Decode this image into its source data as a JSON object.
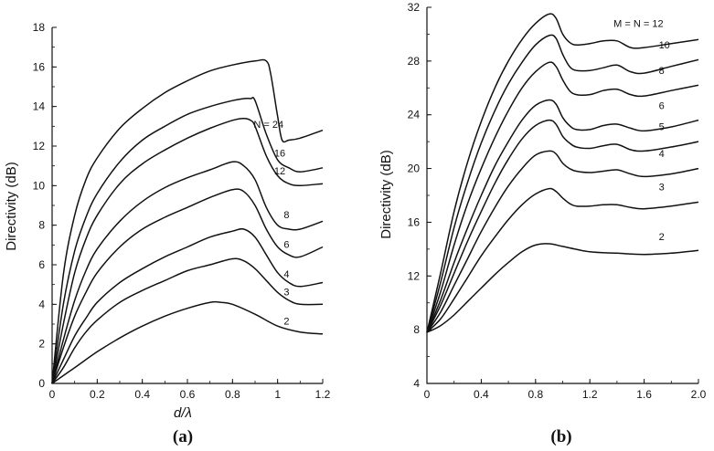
{
  "chart_data": [
    {
      "type": "line",
      "panel_label": "(a)",
      "xlabel": "d/λ",
      "ylabel": "Directivity (dB)",
      "xlim": [
        0,
        1.2
      ],
      "ylim": [
        0,
        18
      ],
      "xticks": [
        "0",
        "0.2",
        "0.4",
        "0.6",
        "0.8",
        "1",
        "1.2"
      ],
      "yticks": [
        "0",
        "2",
        "4",
        "6",
        "8",
        "10",
        "12",
        "14",
        "16",
        "18"
      ],
      "grid": false,
      "series": [
        {
          "name": "N = 24",
          "x": [
            0,
            0.05,
            0.1,
            0.15,
            0.2,
            0.3,
            0.4,
            0.5,
            0.6,
            0.7,
            0.8,
            0.9,
            0.95,
            0.97,
            1.0,
            1.02,
            1.05,
            1.1,
            1.2
          ],
          "y": [
            0,
            5.5,
            8.5,
            10.3,
            11.4,
            12.9,
            13.9,
            14.7,
            15.3,
            15.8,
            16.1,
            16.3,
            16.3,
            15.6,
            13.5,
            12.3,
            12.3,
            12.4,
            12.8
          ]
        },
        {
          "name": "16",
          "x": [
            0,
            0.05,
            0.1,
            0.15,
            0.2,
            0.3,
            0.4,
            0.5,
            0.6,
            0.7,
            0.8,
            0.85,
            0.88,
            0.9,
            0.95,
            1.0,
            1.05,
            1.1,
            1.2
          ],
          "y": [
            0,
            4.0,
            6.7,
            8.4,
            9.6,
            11.2,
            12.3,
            13.0,
            13.6,
            14.0,
            14.3,
            14.4,
            14.4,
            14.3,
            12.6,
            11.3,
            10.9,
            10.7,
            10.9
          ]
        },
        {
          "name": "12",
          "x": [
            0,
            0.05,
            0.1,
            0.15,
            0.2,
            0.3,
            0.4,
            0.5,
            0.6,
            0.7,
            0.8,
            0.85,
            0.88,
            0.9,
            0.95,
            1.0,
            1.05,
            1.1,
            1.2
          ],
          "y": [
            0,
            3.0,
            5.6,
            7.3,
            8.5,
            10.1,
            11.1,
            11.8,
            12.4,
            12.9,
            13.3,
            13.4,
            13.3,
            13.0,
            11.5,
            10.5,
            10.1,
            10.0,
            10.1
          ]
        },
        {
          "name": "8",
          "x": [
            0,
            0.05,
            0.1,
            0.15,
            0.2,
            0.3,
            0.4,
            0.5,
            0.6,
            0.7,
            0.8,
            0.85,
            0.9,
            0.95,
            1.0,
            1.05,
            1.1,
            1.2
          ],
          "y": [
            0,
            2.2,
            4.2,
            5.7,
            6.8,
            8.2,
            9.2,
            9.9,
            10.4,
            10.8,
            11.2,
            11.0,
            10.3,
            8.9,
            8.0,
            7.8,
            7.8,
            8.2
          ]
        },
        {
          "name": "6",
          "x": [
            0,
            0.05,
            0.1,
            0.15,
            0.2,
            0.3,
            0.4,
            0.5,
            0.6,
            0.7,
            0.8,
            0.85,
            0.9,
            0.95,
            1.0,
            1.05,
            1.1,
            1.2
          ],
          "y": [
            0,
            1.8,
            3.4,
            4.6,
            5.6,
            6.9,
            7.8,
            8.4,
            8.9,
            9.4,
            9.8,
            9.7,
            9.0,
            7.8,
            6.9,
            6.5,
            6.4,
            6.9
          ]
        },
        {
          "name": "4",
          "x": [
            0,
            0.05,
            0.1,
            0.15,
            0.2,
            0.3,
            0.4,
            0.5,
            0.6,
            0.7,
            0.8,
            0.85,
            0.9,
            0.95,
            1.0,
            1.05,
            1.1,
            1.2
          ],
          "y": [
            0,
            1.2,
            2.4,
            3.3,
            4.1,
            5.1,
            5.8,
            6.4,
            6.9,
            7.4,
            7.7,
            7.8,
            7.4,
            6.5,
            5.6,
            5.1,
            4.9,
            5.1
          ]
        },
        {
          "name": "3",
          "x": [
            0,
            0.05,
            0.1,
            0.15,
            0.2,
            0.3,
            0.4,
            0.5,
            0.6,
            0.7,
            0.8,
            0.85,
            0.9,
            0.95,
            1.0,
            1.05,
            1.1,
            1.2
          ],
          "y": [
            0,
            0.8,
            1.8,
            2.6,
            3.2,
            4.1,
            4.7,
            5.2,
            5.7,
            6.0,
            6.3,
            6.2,
            5.8,
            5.2,
            4.6,
            4.2,
            4.0,
            4.0
          ]
        },
        {
          "name": "2",
          "x": [
            0,
            0.1,
            0.2,
            0.3,
            0.4,
            0.5,
            0.6,
            0.7,
            0.75,
            0.8,
            0.9,
            1.0,
            1.1,
            1.2
          ],
          "y": [
            0,
            0.8,
            1.6,
            2.3,
            2.9,
            3.4,
            3.8,
            4.1,
            4.1,
            4.0,
            3.5,
            2.9,
            2.6,
            2.5
          ]
        }
      ]
    },
    {
      "type": "line",
      "panel_label": "(b)",
      "xlabel": "",
      "ylabel": "Directivity (dB)",
      "xlim": [
        0,
        2.0
      ],
      "ylim": [
        4,
        32
      ],
      "xticks": [
        "0",
        "0.4",
        "0.8",
        "1.2",
        "1.6",
        "2.0"
      ],
      "yticks": [
        "4",
        "8",
        "12",
        "16",
        "20",
        "24",
        "28",
        "32"
      ],
      "grid": false,
      "series": [
        {
          "name": "M = N = 12",
          "x": [
            0,
            0.1,
            0.2,
            0.3,
            0.4,
            0.5,
            0.6,
            0.7,
            0.8,
            0.9,
            0.95,
            1.0,
            1.05,
            1.1,
            1.2,
            1.3,
            1.4,
            1.5,
            1.6,
            1.8,
            2.0
          ],
          "y": [
            7.8,
            12.2,
            16.8,
            20.5,
            23.5,
            26.0,
            28.0,
            29.6,
            30.8,
            31.5,
            31.2,
            30.0,
            29.4,
            29.2,
            29.3,
            29.5,
            29.5,
            29.0,
            29.0,
            29.3,
            29.6
          ]
        },
        {
          "name": "10",
          "x": [
            0,
            0.1,
            0.2,
            0.3,
            0.4,
            0.5,
            0.6,
            0.7,
            0.8,
            0.9,
            0.95,
            1.0,
            1.05,
            1.1,
            1.2,
            1.3,
            1.4,
            1.5,
            1.6,
            1.8,
            2.0
          ],
          "y": [
            7.8,
            11.5,
            15.6,
            19.0,
            21.9,
            24.3,
            26.3,
            27.9,
            29.2,
            29.9,
            29.7,
            28.5,
            27.6,
            27.3,
            27.3,
            27.5,
            27.7,
            27.2,
            27.1,
            27.6,
            28.1
          ]
        },
        {
          "name": "8",
          "x": [
            0,
            0.1,
            0.2,
            0.3,
            0.4,
            0.5,
            0.6,
            0.7,
            0.8,
            0.9,
            0.95,
            1.0,
            1.05,
            1.1,
            1.2,
            1.3,
            1.4,
            1.5,
            1.6,
            1.8,
            2.0
          ],
          "y": [
            7.8,
            10.8,
            14.3,
            17.4,
            20.0,
            22.3,
            24.3,
            26.0,
            27.2,
            27.9,
            27.6,
            26.6,
            25.8,
            25.5,
            25.5,
            25.8,
            25.9,
            25.5,
            25.4,
            25.8,
            26.2
          ]
        },
        {
          "name": "6",
          "x": [
            0,
            0.1,
            0.2,
            0.3,
            0.4,
            0.5,
            0.6,
            0.7,
            0.8,
            0.9,
            0.95,
            1.0,
            1.05,
            1.1,
            1.2,
            1.3,
            1.4,
            1.5,
            1.6,
            1.8,
            2.0
          ],
          "y": [
            7.8,
            10.2,
            13.0,
            15.6,
            18.0,
            20.2,
            22.0,
            23.6,
            24.7,
            25.1,
            24.8,
            23.8,
            23.2,
            22.9,
            22.9,
            23.2,
            23.3,
            23.0,
            22.8,
            23.1,
            23.6
          ]
        },
        {
          "name": "5",
          "x": [
            0,
            0.1,
            0.2,
            0.3,
            0.4,
            0.5,
            0.6,
            0.7,
            0.8,
            0.9,
            0.95,
            1.0,
            1.05,
            1.1,
            1.2,
            1.3,
            1.4,
            1.5,
            1.6,
            1.8,
            2.0
          ],
          "y": [
            7.8,
            9.8,
            12.2,
            14.6,
            16.8,
            18.9,
            20.7,
            22.2,
            23.2,
            23.6,
            23.3,
            22.4,
            21.9,
            21.6,
            21.5,
            21.7,
            21.8,
            21.4,
            21.3,
            21.6,
            22.0
          ]
        },
        {
          "name": "4",
          "x": [
            0,
            0.1,
            0.2,
            0.3,
            0.4,
            0.5,
            0.6,
            0.7,
            0.8,
            0.9,
            0.95,
            1.0,
            1.05,
            1.1,
            1.2,
            1.3,
            1.4,
            1.5,
            1.6,
            1.8,
            2.0
          ],
          "y": [
            7.8,
            9.3,
            11.3,
            13.3,
            15.3,
            17.1,
            18.7,
            20.0,
            21.0,
            21.3,
            21.1,
            20.4,
            20.0,
            19.8,
            19.7,
            19.8,
            19.9,
            19.6,
            19.4,
            19.6,
            20.0
          ]
        },
        {
          "name": "3",
          "x": [
            0,
            0.1,
            0.2,
            0.3,
            0.4,
            0.5,
            0.6,
            0.7,
            0.8,
            0.9,
            0.95,
            1.0,
            1.05,
            1.1,
            1.2,
            1.3,
            1.4,
            1.5,
            1.6,
            1.8,
            2.0
          ],
          "y": [
            7.8,
            8.8,
            10.3,
            11.9,
            13.5,
            14.9,
            16.2,
            17.3,
            18.1,
            18.5,
            18.3,
            17.8,
            17.4,
            17.2,
            17.2,
            17.3,
            17.3,
            17.1,
            17.0,
            17.2,
            17.5
          ]
        },
        {
          "name": "2",
          "x": [
            0,
            0.1,
            0.2,
            0.3,
            0.4,
            0.5,
            0.6,
            0.7,
            0.8,
            0.9,
            1.0,
            1.2,
            1.4,
            1.6,
            1.8,
            2.0
          ],
          "y": [
            7.8,
            8.3,
            9.1,
            10.1,
            11.1,
            12.1,
            13.0,
            13.8,
            14.3,
            14.4,
            14.2,
            13.8,
            13.7,
            13.6,
            13.7,
            13.9
          ]
        }
      ]
    }
  ]
}
